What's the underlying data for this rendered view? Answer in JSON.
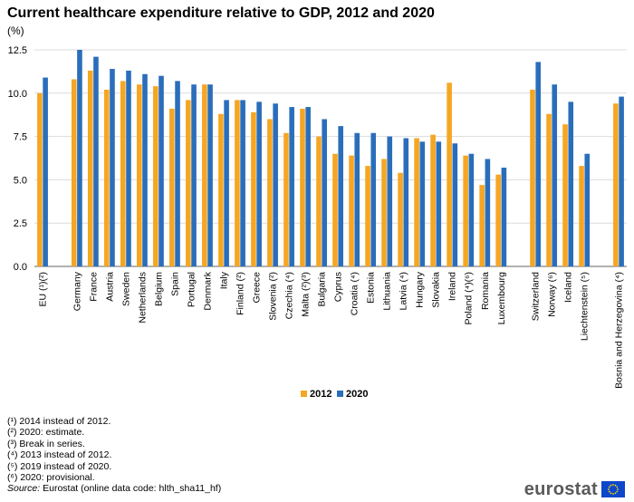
{
  "header": {
    "title": "Current healthcare expenditure relative to GDP, 2012 and 2020",
    "unit": "(%)"
  },
  "colors": {
    "s2012": "#f5a623",
    "s2020": "#2a6ebb",
    "grid": "#dcdcdc",
    "axis": "#666666"
  },
  "chart_data": {
    "type": "bar",
    "title": "Current healthcare expenditure relative to GDP, 2012 and 2020",
    "ylabel": "(%)",
    "xlabel": "",
    "ylim": [
      0,
      12.5
    ],
    "yticks": [
      "0.0",
      "2.5",
      "5.0",
      "7.5",
      "10.0",
      "12.5"
    ],
    "grid": true,
    "legend_position": "bottom-center",
    "categories": [
      "EU (¹)(²)",
      "Germany",
      "France",
      "Austria",
      "Sweden",
      "Netherlands",
      "Belgium",
      "Spain",
      "Portugal",
      "Denmark",
      "Italy",
      "Finland (²)",
      "Greece",
      "Slovenia (²)",
      "Czechia (⁴)",
      "Malta (²)(³)",
      "Bulgaria",
      "Cyprus",
      "Croatia (⁴)",
      "Estonia",
      "Lithuania",
      "Latvia (⁴)",
      "Hungary",
      "Slovakia",
      "Ireland",
      "Poland (⁴)(⁶)",
      "Romania",
      "Luxembourg",
      "Switzerland",
      "Norway (⁶)",
      "Iceland",
      "Liechtenstein (⁵)",
      "Bosnia and Herzegovina (⁴)"
    ],
    "series": [
      {
        "name": "2012",
        "values": [
          10.0,
          10.8,
          11.3,
          10.2,
          10.7,
          10.5,
          10.4,
          9.1,
          9.6,
          10.5,
          8.8,
          9.6,
          8.9,
          8.5,
          7.7,
          9.1,
          7.5,
          6.5,
          6.4,
          5.8,
          6.2,
          5.4,
          7.4,
          7.6,
          10.6,
          6.4,
          4.7,
          5.3,
          10.2,
          8.8,
          8.2,
          5.8,
          9.4
        ]
      },
      {
        "name": "2020",
        "values": [
          10.9,
          12.5,
          12.1,
          11.4,
          11.3,
          11.1,
          11.0,
          10.7,
          10.5,
          10.5,
          9.6,
          9.6,
          9.5,
          9.4,
          9.2,
          9.2,
          8.5,
          8.1,
          7.7,
          7.7,
          7.5,
          7.4,
          7.2,
          7.2,
          7.1,
          6.5,
          6.2,
          5.7,
          11.8,
          10.5,
          9.5,
          6.5,
          9.8
        ]
      }
    ]
  },
  "notes": [
    "(¹) 2014 instead of 2012.",
    "(²) 2020: estimate.",
    "(³) Break in series.",
    "(⁴) 2013 instead of 2012.",
    "(⁵) 2019 instead of 2020.",
    "(⁶) 2020: provisional."
  ],
  "source": {
    "label": "Source:",
    "text": " Eurostat (online data code: hlth_sha11_hf)"
  },
  "logo": {
    "text": "eurostat"
  }
}
